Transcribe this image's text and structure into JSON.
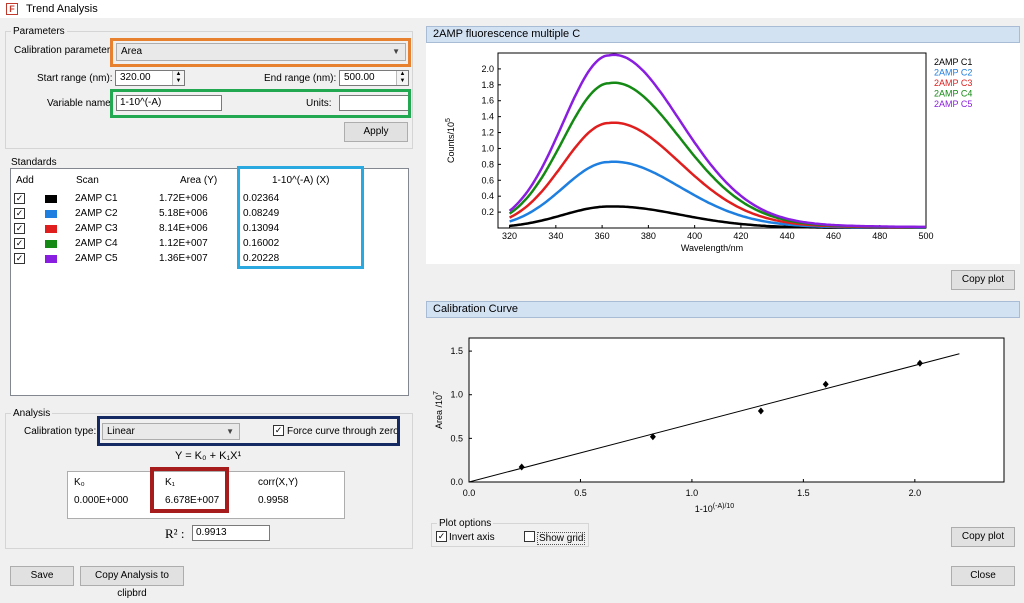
{
  "window": {
    "title": "Trend Analysis",
    "app_icon_letter": "F"
  },
  "parameters": {
    "group_label": "Parameters",
    "calibration_parameter_label": "Calibration parameter:",
    "calibration_parameter_value": "Area",
    "start_range_label": "Start range (nm):",
    "start_range_value": "320.00",
    "end_range_label": "End range (nm):",
    "end_range_value": "500.00",
    "variable_name_label": "Variable name:",
    "variable_name_value": "1-10^(-A)",
    "units_label": "Units:",
    "units_value": "",
    "apply_label": "Apply"
  },
  "standards": {
    "group_label": "Standards",
    "columns": {
      "add": "Add",
      "scan": "Scan",
      "area": "Area (Y)",
      "x": "1-10^(-A) (X)"
    },
    "rows": [
      {
        "checked": true,
        "color": "#000000",
        "scan": "2AMP C1",
        "area": "1.72E+006",
        "x": "0.02364"
      },
      {
        "checked": true,
        "color": "#1e7fe0",
        "scan": "2AMP C2",
        "area": "5.18E+006",
        "x": "0.08249"
      },
      {
        "checked": true,
        "color": "#e01e1e",
        "scan": "2AMP C3",
        "area": "8.14E+006",
        "x": "0.13094"
      },
      {
        "checked": true,
        "color": "#148a14",
        "scan": "2AMP C4",
        "area": "1.12E+007",
        "x": "0.16002"
      },
      {
        "checked": true,
        "color": "#8a1ee0",
        "scan": "2AMP C5",
        "area": "1.36E+007",
        "x": "0.20228"
      }
    ]
  },
  "analysis": {
    "group_label": "Analysis",
    "calibration_type_label": "Calibration type:",
    "calibration_type_value": "Linear",
    "force_zero_label": "Force curve through zero",
    "force_zero_checked": true,
    "equation": "Y = K₀ + K₁X¹",
    "k0_label": "K₀",
    "k0_value": "0.000E+000",
    "k1_label": "K₁",
    "k1_value": "6.678E+007",
    "corr_label": "corr(X,Y)",
    "corr_value": "0.9958",
    "r2_label": "R² :",
    "r2_value": "0.9913"
  },
  "footer": {
    "save_label": "Save",
    "copy_analysis_label": "Copy Analysis to clipbrd",
    "close_label": "Close"
  },
  "highlight_colors": {
    "orange": "#e8812f",
    "green": "#22a850",
    "blue": "#2aa9e0",
    "navy": "#152a63",
    "darkred": "#a61c1c"
  },
  "fluorescence_plot": {
    "title": "2AMP fluorescence multiple C",
    "copy_label": "Copy plot"
  },
  "calibration_plot": {
    "title": "Calibration Curve",
    "plot_options_label": "Plot options",
    "invert_axis_label": "Invert axis",
    "invert_axis_checked": true,
    "show_grid_label": "Show grid",
    "show_grid_checked": false,
    "copy_label": "Copy plot"
  },
  "chart_data": [
    {
      "type": "line",
      "title": "",
      "xlabel": "Wavelength/nm",
      "ylabel": "Counts/10^5",
      "xlim": [
        315,
        500
      ],
      "ylim": [
        0,
        2.2
      ],
      "x_ticks": [
        320,
        340,
        360,
        380,
        400,
        420,
        440,
        460,
        480,
        500
      ],
      "y_ticks": [
        0.2,
        0.4,
        0.6,
        0.8,
        1.0,
        1.2,
        1.4,
        1.6,
        1.8,
        2.0
      ],
      "legend_position": "right",
      "peak_x": 363,
      "series": [
        {
          "name": "2AMP C1",
          "color": "#000000",
          "peak": 0.27
        },
        {
          "name": "2AMP C2",
          "color": "#1e7fe0",
          "peak": 0.83
        },
        {
          "name": "2AMP C3",
          "color": "#e01e1e",
          "peak": 1.32
        },
        {
          "name": "2AMP C4",
          "color": "#148a14",
          "peak": 1.82
        },
        {
          "name": "2AMP C5",
          "color": "#8a1ee0",
          "peak": 2.17
        }
      ]
    },
    {
      "type": "scatter",
      "title": "",
      "xlabel": "1-10^(-A)/10^-1",
      "ylabel": "Area /10^7",
      "xlim": [
        0,
        2.4
      ],
      "ylim": [
        0,
        1.65
      ],
      "x_ticks": [
        0.0,
        0.5,
        1.0,
        1.5,
        2.0
      ],
      "y_ticks": [
        0.0,
        0.5,
        1.0,
        1.5
      ],
      "grid": false,
      "points": [
        {
          "x": 0.2364,
          "y": 0.172
        },
        {
          "x": 0.8249,
          "y": 0.518
        },
        {
          "x": 1.3094,
          "y": 0.814
        },
        {
          "x": 1.6002,
          "y": 1.12
        },
        {
          "x": 2.0228,
          "y": 1.36
        }
      ],
      "fit_line": {
        "x": [
          0,
          2.2
        ],
        "y": [
          0,
          1.4692
        ]
      }
    }
  ]
}
